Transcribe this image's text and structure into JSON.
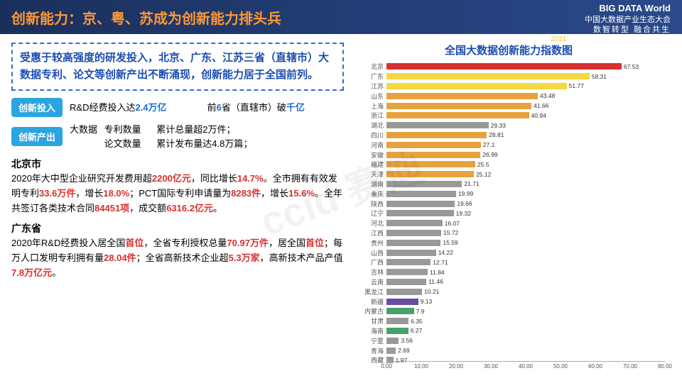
{
  "header": {
    "title": "创新能力：京、粤、苏成为创新能力排头兵",
    "logo_main": "BIG DATA World",
    "logo_sub": "中国大数据产业生态大会",
    "slogan": "数智转型 融合共生",
    "event_year": "2021",
    "event_text": "(第六届)中国大数据产业生态大会"
  },
  "intro": "受惠于较高强度的研发投入，北京、广东、江苏三省（直辖市）大数据专利、论文等创新产出不断涌现，创新能力居于全国前列。",
  "innov_input": {
    "tag": "创新投入",
    "text1_pre": "R&D经费投入达",
    "text1_hl": "2.4万亿",
    "text2_pre": "前",
    "text2_hl1": "6",
    "text2_mid": "省（直辖市）破",
    "text2_hl2": "千亿"
  },
  "innov_output": {
    "tag": "创新产出",
    "label": "大数据",
    "line1_a": "专利数量",
    "line1_b": "累计总量超2万件；",
    "line2_a": "论文数量",
    "line2_b": "累计发布量达4.8万篇；"
  },
  "beijing": {
    "name": "北京市",
    "text": "2020年大中型企业研究开发费用超<r>2200亿元</r>，同比增长<r>14.7%</r>。全市拥有有效发明专利<r>33.6万件</r>，增长<r>18.0%</r>；PCT国际专利申请量为<r>8283件</r>，增长<r>15.6%</r>。全年共签订各类技术合同<r>84451项</r>，成交额<r>6316.2亿元</r>。"
  },
  "guangdong": {
    "name": "广东省",
    "text": "2020年R&D经费投入居全国<r>首位</r>，全省专利授权总量<r>70.97万件</r>，居全国<r>首位</r>；每万人口发明专利拥有量<r>28.04件</r>；全省高新技术企业超<r>5.3万家</r>，高新技术产品产值<r>7.8万亿元</r>。"
  },
  "chart": {
    "title": "全国大数据创新能力指数图",
    "xmax": 80,
    "xtick_step": 10,
    "xticks": [
      "0.00",
      "10.00",
      "20.00",
      "30.00",
      "40.00",
      "50.00",
      "60.00",
      "70.00",
      "80.00"
    ],
    "regions": [
      {
        "n": "北京",
        "v": 67.53,
        "c": "#d93030"
      },
      {
        "n": "广东",
        "v": 58.31,
        "c": "#f5d742"
      },
      {
        "n": "江苏",
        "v": 51.77,
        "c": "#f5d742"
      },
      {
        "n": "山东",
        "v": 43.48,
        "c": "#e8a23d"
      },
      {
        "n": "上海",
        "v": 41.66,
        "c": "#e8a23d"
      },
      {
        "n": "浙江",
        "v": 40.94,
        "c": "#e8a23d"
      },
      {
        "n": "湖北",
        "v": 29.33,
        "c": "#999999"
      },
      {
        "n": "四川",
        "v": 28.81,
        "c": "#e8a23d"
      },
      {
        "n": "河南",
        "v": 27.1,
        "c": "#e8a23d"
      },
      {
        "n": "安徽",
        "v": 26.99,
        "c": "#e8a23d"
      },
      {
        "n": "福建",
        "v": 25.5,
        "c": "#e8a23d"
      },
      {
        "n": "天津",
        "v": 25.12,
        "c": "#e8a23d"
      },
      {
        "n": "湖南",
        "v": 21.71,
        "c": "#999999"
      },
      {
        "n": "重庆",
        "v": 19.99,
        "c": "#999999"
      },
      {
        "n": "陕西",
        "v": 19.66,
        "c": "#999999"
      },
      {
        "n": "辽宁",
        "v": 19.32,
        "c": "#999999"
      },
      {
        "n": "河北",
        "v": 16.07,
        "c": "#999999"
      },
      {
        "n": "江西",
        "v": 15.72,
        "c": "#999999"
      },
      {
        "n": "贵州",
        "v": 15.59,
        "c": "#999999"
      },
      {
        "n": "山西",
        "v": 14.22,
        "c": "#999999"
      },
      {
        "n": "广西",
        "v": 12.71,
        "c": "#999999"
      },
      {
        "n": "吉林",
        "v": 11.84,
        "c": "#999999"
      },
      {
        "n": "云南",
        "v": 11.46,
        "c": "#999999"
      },
      {
        "n": "黑龙江",
        "v": 10.21,
        "c": "#999999"
      },
      {
        "n": "新疆",
        "v": 9.13,
        "c": "#6a4ca0"
      },
      {
        "n": "内蒙古",
        "v": 7.9,
        "c": "#4aa06a"
      },
      {
        "n": "甘肃",
        "v": 6.35,
        "c": "#999999"
      },
      {
        "n": "海南",
        "v": 6.27,
        "c": "#4aa06a"
      },
      {
        "n": "宁夏",
        "v": 3.56,
        "c": "#999999"
      },
      {
        "n": "青海",
        "v": 2.69,
        "c": "#999999"
      },
      {
        "n": "西藏",
        "v": 1.97,
        "c": "#999999"
      }
    ]
  },
  "watermark": "ccid 赛迪"
}
